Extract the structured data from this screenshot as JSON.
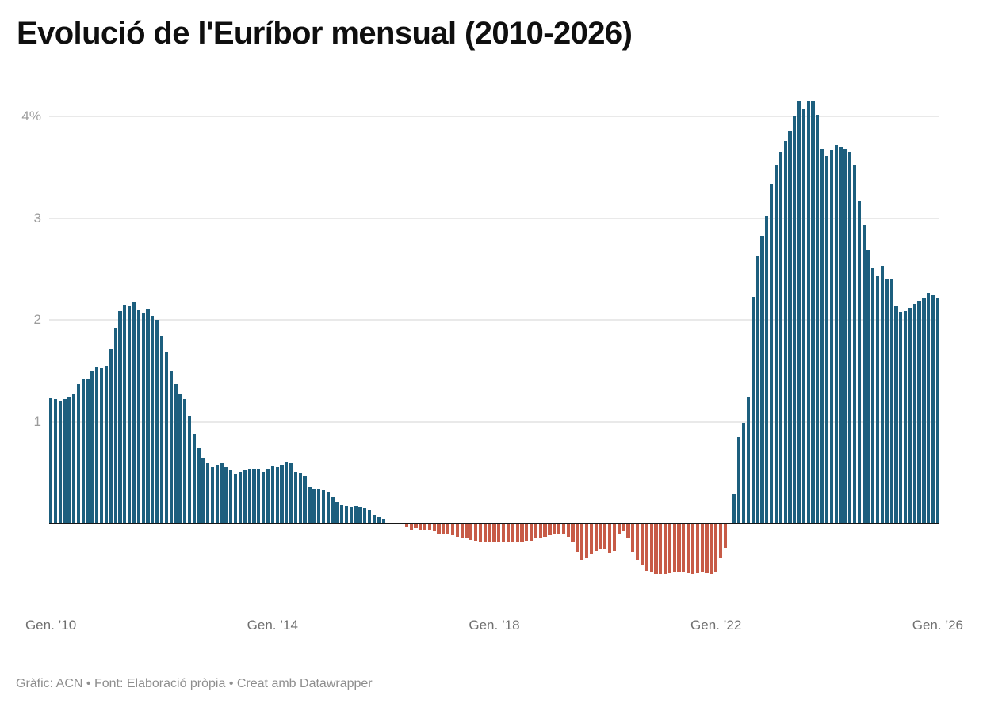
{
  "header": {
    "title": "Evolució de l'Euríbor mensual (2010-2026)"
  },
  "footer": {
    "text": "Gràfic: ACN • Font: Elaboració pròpia • Creat amb Datawrapper"
  },
  "chart_data": {
    "type": "bar",
    "title": "Evolució de l'Euríbor mensual (2010-2026)",
    "xlabel": "",
    "ylabel": "",
    "unit": "%",
    "ylim": [
      -0.7,
      4.35
    ],
    "grid": "horizontal",
    "legend": "none",
    "colors": {
      "positive": "#1d5f7e",
      "negative": "#c75b47",
      "baseline": "#161616",
      "gridline": "#e9e9e9",
      "y_tick_text": "#9b9b9b",
      "x_tick_text": "#6f6f6f"
    },
    "y_axis": {
      "ticks": [
        {
          "label": "4%",
          "value": 4
        },
        {
          "label": "3",
          "value": 3
        },
        {
          "label": "2",
          "value": 2
        },
        {
          "label": "1",
          "value": 1
        }
      ]
    },
    "x_axis": {
      "ticks": [
        {
          "label": "Gen. ’10",
          "month_index": 0
        },
        {
          "label": "Gen. ’14",
          "month_index": 48
        },
        {
          "label": "Gen. ’18",
          "month_index": 96
        },
        {
          "label": "Gen. ’22",
          "month_index": 144
        },
        {
          "label": "Gen. ’26",
          "month_index": 192
        }
      ]
    },
    "series_start": "Gener 2010",
    "series_end": "Gener 2026",
    "years": [
      {
        "year": 2010,
        "values": [
          1.23,
          1.22,
          1.21,
          1.22,
          1.25,
          1.28,
          1.37,
          1.42,
          1.42,
          1.5,
          1.54,
          1.53
        ]
      },
      {
        "year": 2011,
        "values": [
          1.55,
          1.71,
          1.92,
          2.09,
          2.15,
          2.14,
          2.18,
          2.1,
          2.07,
          2.11,
          2.04,
          2.0
        ]
      },
      {
        "year": 2012,
        "values": [
          1.84,
          1.68,
          1.5,
          1.37,
          1.27,
          1.22,
          1.06,
          0.88,
          0.74,
          0.65,
          0.59,
          0.55
        ]
      },
      {
        "year": 2013,
        "values": [
          0.58,
          0.59,
          0.55,
          0.53,
          0.48,
          0.51,
          0.53,
          0.54,
          0.54,
          0.54,
          0.51,
          0.54
        ]
      },
      {
        "year": 2014,
        "values": [
          0.56,
          0.55,
          0.58,
          0.6,
          0.59,
          0.51,
          0.49,
          0.47,
          0.36,
          0.34,
          0.34,
          0.33
        ]
      },
      {
        "year": 2015,
        "values": [
          0.3,
          0.26,
          0.21,
          0.18,
          0.17,
          0.16,
          0.17,
          0.16,
          0.15,
          0.13,
          0.08,
          0.06
        ]
      },
      {
        "year": 2016,
        "values": [
          0.04,
          -0.01,
          -0.01,
          -0.01,
          -0.01,
          -0.03,
          -0.06,
          -0.05,
          -0.06,
          -0.07,
          -0.07,
          -0.08
        ]
      },
      {
        "year": 2017,
        "values": [
          -0.1,
          -0.11,
          -0.11,
          -0.12,
          -0.13,
          -0.15,
          -0.15,
          -0.16,
          -0.17,
          -0.18,
          -0.19,
          -0.19
        ]
      },
      {
        "year": 2018,
        "values": [
          -0.19,
          -0.19,
          -0.19,
          -0.19,
          -0.19,
          -0.18,
          -0.18,
          -0.17,
          -0.17,
          -0.15,
          -0.15,
          -0.13
        ]
      },
      {
        "year": 2019,
        "values": [
          -0.12,
          -0.11,
          -0.11,
          -0.11,
          -0.13,
          -0.19,
          -0.28,
          -0.36,
          -0.34,
          -0.3,
          -0.27,
          -0.26
        ]
      },
      {
        "year": 2020,
        "values": [
          -0.25,
          -0.29,
          -0.27,
          -0.11,
          -0.08,
          -0.15,
          -0.28,
          -0.36,
          -0.41,
          -0.47,
          -0.48,
          -0.5
        ]
      },
      {
        "year": 2021,
        "values": [
          -0.5,
          -0.5,
          -0.49,
          -0.48,
          -0.48,
          -0.48,
          -0.49,
          -0.5,
          -0.49,
          -0.48,
          -0.49,
          -0.5
        ]
      },
      {
        "year": 2022,
        "values": [
          -0.48,
          -0.34,
          -0.24,
          0.01,
          0.29,
          0.85,
          0.99,
          1.25,
          2.23,
          2.63,
          2.83,
          3.02
        ]
      },
      {
        "year": 2023,
        "values": [
          3.34,
          3.53,
          3.65,
          3.76,
          3.86,
          4.01,
          4.15,
          4.07,
          4.15,
          4.16,
          4.02,
          3.68
        ]
      },
      {
        "year": 2024,
        "values": [
          3.61,
          3.67,
          3.72,
          3.7,
          3.68,
          3.65,
          3.53,
          3.17,
          2.94,
          2.69,
          2.51,
          2.44
        ]
      },
      {
        "year": 2025,
        "values": [
          2.53,
          2.41,
          2.4,
          2.14,
          2.08,
          2.09,
          2.12,
          2.16,
          2.19,
          2.21,
          2.27,
          2.24
        ]
      },
      {
        "year": 2026,
        "values": [
          2.22
        ]
      }
    ]
  }
}
